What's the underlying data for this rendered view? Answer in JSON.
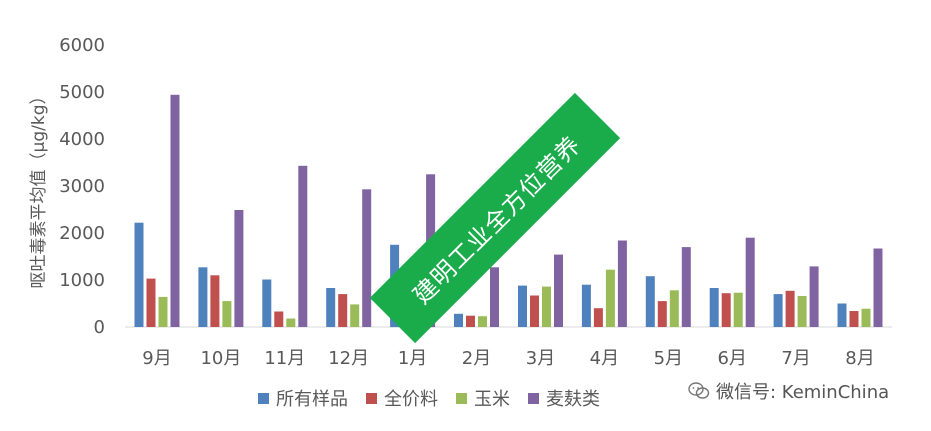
{
  "chart_data": {
    "type": "bar",
    "title": "",
    "xlabel": "",
    "ylabel": "呕吐毒素平均值（μg/kg）",
    "ylim": [
      0,
      6000
    ],
    "yticks": [
      0,
      1000,
      2000,
      3000,
      4000,
      5000,
      6000
    ],
    "categories": [
      "9月",
      "10月",
      "11月",
      "12月",
      "1月",
      "2月",
      "3月",
      "4月",
      "5月",
      "6月",
      "7月",
      "8月"
    ],
    "series": [
      {
        "name": "所有样品",
        "color": "#4f81bd",
        "values": [
          2220,
          1270,
          1010,
          830,
          1750,
          280,
          880,
          900,
          1080,
          830,
          700,
          500
        ]
      },
      {
        "name": "全价料",
        "color": "#c0504d",
        "values": [
          1030,
          1100,
          330,
          700,
          380,
          240,
          670,
          400,
          550,
          720,
          770,
          340
        ]
      },
      {
        "name": "玉米",
        "color": "#9bbb59",
        "values": [
          640,
          550,
          180,
          480,
          330,
          230,
          860,
          1220,
          780,
          730,
          660,
          390
        ]
      },
      {
        "name": "麦麸类",
        "color": "#8064a2",
        "values": [
          4940,
          2490,
          3430,
          2930,
          3250,
          1270,
          1540,
          1840,
          1700,
          1900,
          1290,
          1670
        ]
      }
    ],
    "legend_position": "bottom",
    "grid": false
  },
  "watermark": {
    "text": "建明工业全方位营养",
    "color": "#1aab4b"
  },
  "wechat": {
    "text": "微信号: KeminChina",
    "icon": "wechat-icon"
  }
}
